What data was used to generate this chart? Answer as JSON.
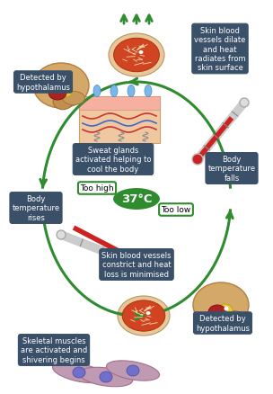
{
  "bg_color": "#ffffff",
  "green": "#2e8b2e",
  "box_dark": "#3a5068",
  "center_text": "37°C",
  "too_high": "Too high",
  "too_low": "Too low",
  "box_texts": {
    "skin_dilate": "Skin blood\nvessels dilate\nand heat\nradiates from\nskin surface",
    "sweat": "Sweat glands\nactivated helping to\ncool the body",
    "body_falls": "Body\ntemperature\nfalls",
    "detected_top": "Detected by\nhypothalamus",
    "body_rises": "Body\ntemperature\nrises",
    "skin_constrict": "Skin blood vessels\nconstrict and heat\nloss is minimised",
    "detected_bot": "Detected by\nhypothalamus",
    "skeletal": "Skeletal muscles\nare activated and\nshivering begins"
  }
}
